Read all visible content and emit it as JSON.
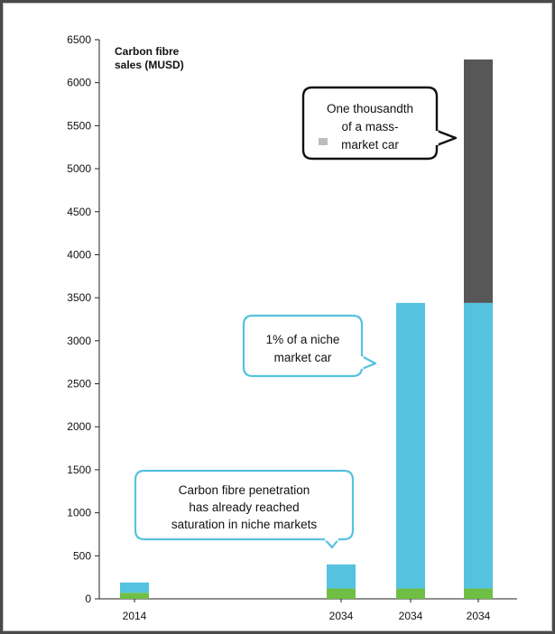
{
  "chart_data": {
    "type": "bar",
    "title_lines": [
      "Carbon fibre",
      "sales (MUSD)"
    ],
    "ylim": [
      0,
      6500
    ],
    "yticks": [
      0,
      500,
      1000,
      1500,
      2000,
      2500,
      3000,
      3500,
      4000,
      4500,
      5000,
      5500,
      6000,
      6500
    ],
    "categories": [
      "2014",
      "2034",
      "2034",
      "2034"
    ],
    "series": [
      {
        "color": "#6fbf44",
        "values": [
          70,
          120,
          120,
          120
        ]
      },
      {
        "color": "#55c2e0",
        "values": [
          120,
          280,
          3320,
          3320
        ]
      },
      {
        "color": "#575757",
        "values": [
          0,
          0,
          0,
          2830
        ]
      }
    ],
    "annotations": [
      {
        "lines": [
          "One thousandth",
          "of a mass-",
          "market car"
        ],
        "style": "dark",
        "target_bar": 3
      },
      {
        "lines": [
          "1% of a niche",
          "market car"
        ],
        "style": "blue",
        "target_bar": 2
      },
      {
        "lines": [
          "Carbon fibre  penetration",
          "has already reached",
          "saturation in niche markets"
        ],
        "style": "blue",
        "target_bar": 1
      }
    ],
    "grid": false,
    "legend": "none"
  }
}
